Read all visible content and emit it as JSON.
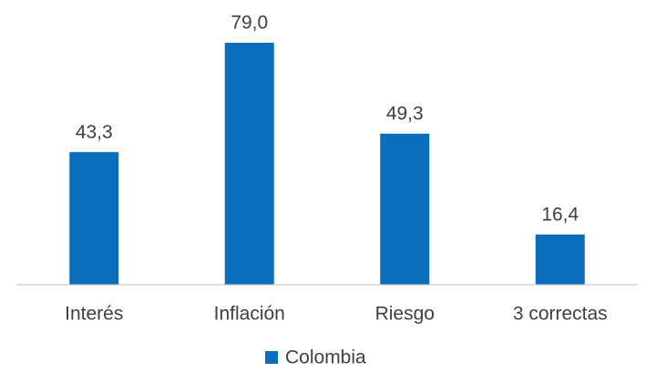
{
  "chart_data": {
    "type": "bar",
    "categories": [
      "Interés",
      "Inflación",
      "Riesgo",
      "3 correctas"
    ],
    "series": [
      {
        "name": "Colombia",
        "color": "#0a6ebd",
        "values": [
          43.3,
          79.0,
          49.3,
          16.4
        ],
        "value_labels": [
          "43,3",
          "79,0",
          "49,3",
          "16,4"
        ]
      }
    ],
    "ylim": [
      0,
      90
    ]
  }
}
